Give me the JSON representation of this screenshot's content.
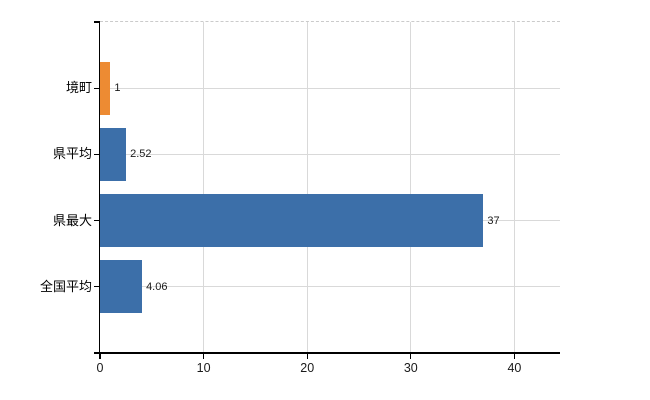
{
  "chart_data": {
    "type": "bar",
    "orientation": "horizontal",
    "title": "",
    "categories": [
      "境町",
      "県平均",
      "県最大",
      "全国平均"
    ],
    "values": [
      1,
      2.52,
      37,
      4.06
    ],
    "value_labels": [
      "1",
      "2.52",
      "37",
      "4.06"
    ],
    "bar_colors": [
      "#ED8B33",
      "#3C6FA9",
      "#3C6FA9",
      "#3C6FA9"
    ],
    "x_ticks": [
      0,
      10,
      20,
      30,
      40
    ],
    "x_tick_labels": [
      "0",
      "10",
      "20",
      "30",
      "40"
    ],
    "xlim": [
      0,
      44.4
    ],
    "xlabel": "",
    "ylabel": "",
    "grid": "both",
    "legend": "none"
  },
  "theme": {
    "background": "#FFFFFF",
    "axis_color": "#000000",
    "gridline_color": "#D9D9D9",
    "top_border_color": "#CBCBCB",
    "category_label_color": "#000000",
    "value_label_color": "#1A1A1A",
    "tick_label_color": "#1A1A1A"
  }
}
